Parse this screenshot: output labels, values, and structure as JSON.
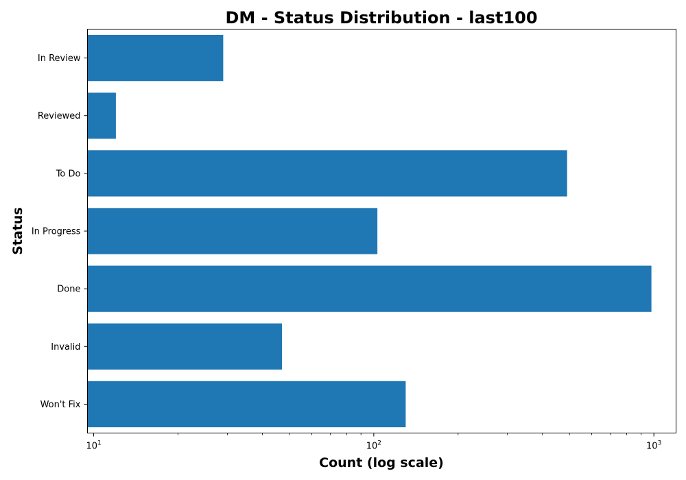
{
  "chart_data": {
    "type": "bar",
    "orientation": "horizontal",
    "title": "DM - Status Distribution - last100",
    "xlabel": "Count (log scale)",
    "ylabel": "Status",
    "x_scale": "log",
    "xlim": [
      9.5,
      1200
    ],
    "x_ticks": [
      {
        "value": 10,
        "base": "10",
        "exp": "1"
      },
      {
        "value": 100,
        "base": "10",
        "exp": "2"
      },
      {
        "value": 1000,
        "base": "10",
        "exp": "3"
      }
    ],
    "categories": [
      "Won't Fix",
      "Invalid",
      "Done",
      "In Progress",
      "To Do",
      "Reviewed",
      "In Review"
    ],
    "values": [
      130,
      47,
      980,
      103,
      490,
      12,
      29
    ],
    "bar_color": "#1f77b4",
    "grid": false,
    "legend": "none"
  }
}
